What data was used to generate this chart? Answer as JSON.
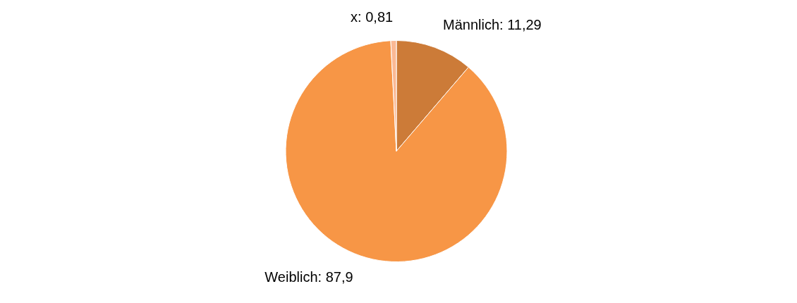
{
  "chart_data": {
    "type": "pie",
    "categories": [
      "Männlich",
      "Weiblich",
      "x"
    ],
    "values": [
      11.29,
      87.9,
      0.81
    ],
    "value_labels": [
      "11,29",
      "87,9",
      "0,81"
    ],
    "colors": [
      "#cc7b38",
      "#f79646",
      "#fbb994"
    ],
    "legend": false
  }
}
